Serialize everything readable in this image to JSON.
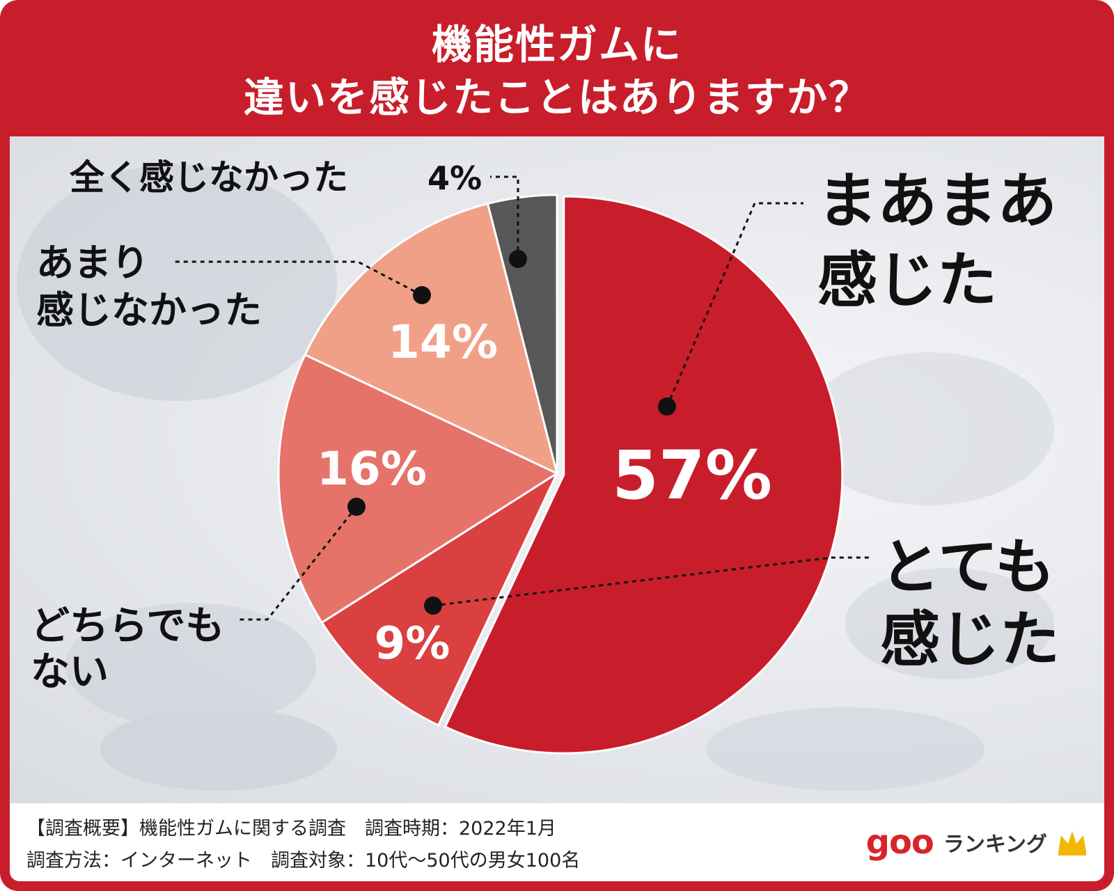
{
  "title": {
    "line1": "機能性ガムに",
    "line2": "違いを感じたことはありますか？"
  },
  "chart_data": {
    "type": "pie",
    "title": "機能性ガムに違いを感じたことはありますか？",
    "slices": [
      {
        "label": "まあまあ感じた",
        "value": 57,
        "display": "57%",
        "color": "#c81e2b"
      },
      {
        "label": "とても感じた",
        "value": 9,
        "display": "9%",
        "color": "#d9403f"
      },
      {
        "label": "どちらでもない",
        "value": 16,
        "display": "16%",
        "color": "#e5736a"
      },
      {
        "label": "あまり感じなかった",
        "value": 14,
        "display": "14%",
        "color": "#f0a087"
      },
      {
        "label": "全く感じなかった",
        "value": 4,
        "display": "4%",
        "color": "#58585a"
      }
    ]
  },
  "callouts": {
    "maamaa": {
      "line1": "まあまあ",
      "line2": "感じた"
    },
    "totemo": {
      "line1": "とても",
      "line2": "感じた"
    },
    "dochira": {
      "line1": "どちらでも",
      "line2": "ない"
    },
    "amari": {
      "line1": "あまり",
      "line2": "感じなかった"
    },
    "mattaku": {
      "text": "全く感じなかった",
      "pct": "4%"
    }
  },
  "footer": {
    "line1": "【調査概要】機能性ガムに関する調査　調査時期：2022年1月",
    "line2": "調査方法：インターネット　調査対象：10代〜50代の男女100名"
  },
  "brand": {
    "logo": "goo",
    "name": "ランキング",
    "icon": "crown-icon"
  }
}
